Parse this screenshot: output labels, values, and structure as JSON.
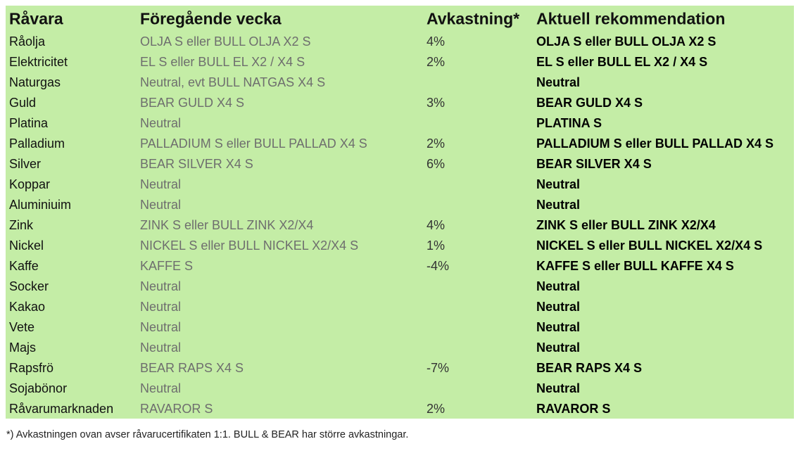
{
  "table": {
    "headers": [
      "Råvara",
      "Föregående vecka",
      "Avkastning*",
      "Aktuell rekommendation"
    ],
    "rows": [
      [
        "Råolja",
        "OLJA S eller BULL OLJA X2 S",
        "4%",
        "OLJA S eller BULL OLJA X2 S"
      ],
      [
        "Elektricitet",
        "EL S eller BULL EL X2 / X4 S",
        "2%",
        "EL S eller BULL EL X2 / X4 S"
      ],
      [
        "Naturgas",
        "Neutral, evt BULL NATGAS X4 S",
        null,
        "Neutral"
      ],
      [
        "Guld",
        "BEAR GULD X4 S",
        "3%",
        "BEAR GULD X4 S"
      ],
      [
        "Platina",
        "Neutral",
        null,
        "PLATINA S"
      ],
      [
        "Palladium",
        "PALLADIUM S eller BULL PALLAD X4 S",
        "2%",
        "PALLADIUM S eller BULL PALLAD X4 S"
      ],
      [
        "Silver",
        "BEAR SILVER X4 S",
        "6%",
        "BEAR SILVER X4 S"
      ],
      [
        "Koppar",
        "Neutral",
        null,
        "Neutral"
      ],
      [
        "Aluminiuim",
        "Neutral",
        null,
        "Neutral"
      ],
      [
        "Zink",
        "ZINK S eller BULL ZINK X2/X4",
        "4%",
        "ZINK S eller BULL ZINK X2/X4"
      ],
      [
        "Nickel",
        "NICKEL S eller BULL NICKEL X2/X4 S",
        "1%",
        "NICKEL S eller BULL NICKEL X2/X4 S"
      ],
      [
        "Kaffe",
        "KAFFE S",
        "-4%",
        "KAFFE S eller BULL KAFFE X4 S"
      ],
      [
        "Socker",
        "Neutral",
        null,
        "Neutral"
      ],
      [
        "Kakao",
        "Neutral",
        null,
        "Neutral"
      ],
      [
        "Vete",
        "Neutral",
        null,
        "Neutral"
      ],
      [
        "Majs",
        "Neutral",
        null,
        "Neutral"
      ],
      [
        "Rapsfrö",
        "BEAR RAPS X4 S",
        "-7%",
        "BEAR RAPS X4 S"
      ],
      [
        "Sojabönor",
        "Neutral",
        null,
        "Neutral"
      ],
      [
        "Råvarumarknaden",
        "RAVAROR S",
        "2%",
        "RAVAROR S"
      ]
    ]
  },
  "footnote": "*) Avkastningen ovan avser råvarucertifikaten 1:1. BULL & BEAR har större avkastningar."
}
